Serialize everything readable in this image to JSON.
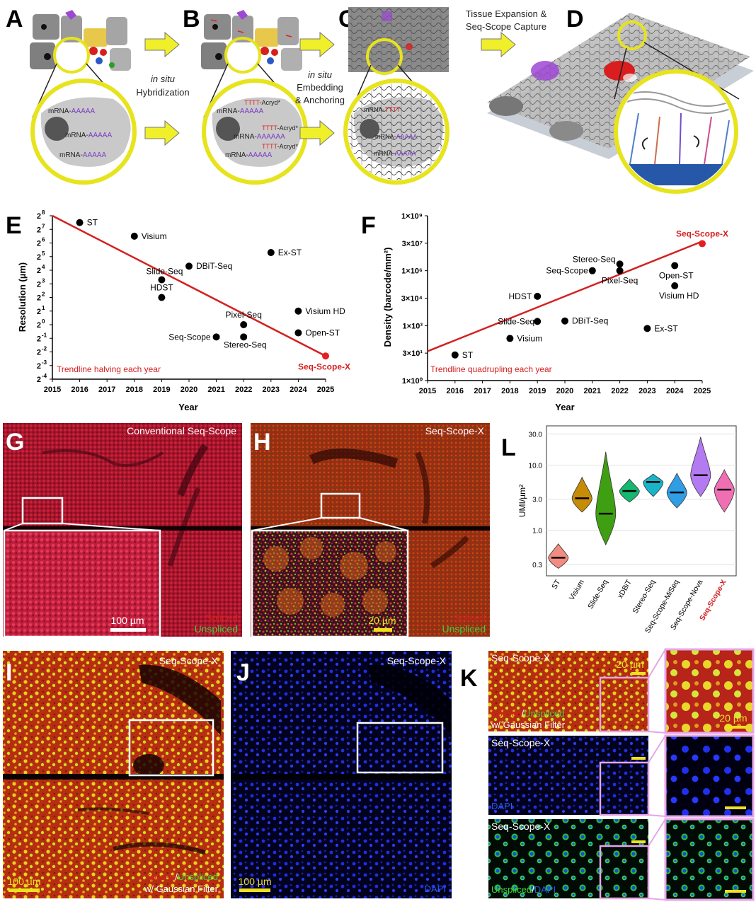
{
  "panels": {
    "A": {
      "label": "A"
    },
    "B": {
      "label": "B"
    },
    "C": {
      "label": "C"
    },
    "D": {
      "label": "D"
    },
    "E": {
      "label": "E"
    },
    "F": {
      "label": "F"
    },
    "G": {
      "label": "G",
      "title": "Conventional Seq-Scope",
      "scale": "100 µm",
      "legend_spliced": "Spliced",
      "legend_unspliced": "Unspliced"
    },
    "H": {
      "label": "H",
      "title": "Seq-Scope-X",
      "scale": "20 µm",
      "legend_spliced": "Spliced",
      "legend_unspliced": "Unspliced"
    },
    "I": {
      "label": "I",
      "title": "Seq-Scope-X",
      "scale": "100 µm",
      "legend_spliced": "Spliced",
      "legend_slash": "/",
      "legend_unspliced": "Unspliced",
      "legend_filter": "w/ Gaussian Filter"
    },
    "J": {
      "label": "J",
      "title": "Seq-Scope-X",
      "scale": "100 µm",
      "legend_dapi": "DAPI"
    },
    "K": {
      "label": "K",
      "t1": "Seq-Scope-X",
      "t2": "Seq-Scope-X",
      "t3": "Seq-Scope-X",
      "scale1": "20 µm",
      "scale2": "20 µm",
      "leg1_spliced": "Spliced",
      "leg1_slash": "/",
      "leg1_unspliced": "Unspliced",
      "leg1_filter": "w/ Gaussian Filter",
      "leg2_dapi": "DAPI",
      "leg3_unspliced": "Unspliced",
      "leg3_slash": "/",
      "leg3_dapi": "DAPI"
    },
    "L": {
      "label": "L"
    }
  },
  "schematic": {
    "step1": "in situ",
    "step1b": "Hybridization",
    "step2": "in situ",
    "step2b": "Embedding",
    "step2c": "& Anchoring",
    "step3": "Tissue Expansion &",
    "step3b": "Seq-Scope Capture",
    "mrna": "mRNA-",
    "polya": "AAAAA",
    "polya6": "AAAAAA",
    "tttt": "TTTT",
    "acryd": "-Acryd*"
  },
  "chart_data": [
    {
      "type": "scatter",
      "panel": "E",
      "xlabel": "Year",
      "ylabel": "Resolution (µm)",
      "log_base": 2,
      "xlim": [
        2015,
        2025
      ],
      "xticks": [
        "2015",
        "2016",
        "2017",
        "2018",
        "2019",
        "2020",
        "2021",
        "2022",
        "2023",
        "2024",
        "2025"
      ],
      "ytick_exponents": [
        "8",
        "7",
        "6",
        "5",
        "4",
        "3",
        "2",
        "1",
        "0",
        "-1",
        "-2",
        "-3",
        "-4"
      ],
      "ylim_exponent": [
        -4,
        8
      ],
      "points": [
        {
          "name": "ST",
          "x": 2016,
          "y_exp": 7.5
        },
        {
          "name": "Visium",
          "x": 2018,
          "y_exp": 6.5
        },
        {
          "name": "DBiT-Seq",
          "x": 2020,
          "y_exp": 4.3
        },
        {
          "name": "Ex-ST",
          "x": 2023,
          "y_exp": 5.3
        },
        {
          "name": "Slide-Seq",
          "x": 2019,
          "y_exp": 3.3
        },
        {
          "name": "HDST",
          "x": 2019,
          "y_exp": 2.0
        },
        {
          "name": "Visium HD",
          "x": 2024,
          "y_exp": 1.0
        },
        {
          "name": "Pixel-Seq",
          "x": 2022,
          "y_exp": 0.0
        },
        {
          "name": "Seq-Scope",
          "x": 2021,
          "y_exp": -0.9
        },
        {
          "name": "Stereo-Seq",
          "x": 2022,
          "y_exp": -0.9
        },
        {
          "name": "Open-ST",
          "x": 2024,
          "y_exp": -0.6
        },
        {
          "name": "Seq-Scope-X",
          "x": 2025,
          "y_exp": -2.3,
          "highlight": true
        }
      ],
      "trend": {
        "label": "Trendline halving each year",
        "start": [
          2015,
          8
        ],
        "end": [
          2025,
          -2.3
        ]
      }
    },
    {
      "type": "scatter",
      "panel": "F",
      "xlabel": "Year",
      "ylabel": "Density (barcode/mm²)",
      "xlim": [
        2015,
        2025
      ],
      "xticks": [
        "2015",
        "2016",
        "2017",
        "2018",
        "2019",
        "2020",
        "2021",
        "2022",
        "2023",
        "2024",
        "2025"
      ],
      "yticks": [
        "1×10⁹",
        "3×10⁷",
        "1×10⁶",
        "3×10⁴",
        "1×10³",
        "3×10¹",
        "1×10⁰"
      ],
      "ylim_log10": [
        0,
        9
      ],
      "points": [
        {
          "name": "ST",
          "x": 2016,
          "y": 25
        },
        {
          "name": "Visium",
          "x": 2018,
          "y": 200
        },
        {
          "name": "Slide-Seq",
          "x": 2019,
          "y": 1700
        },
        {
          "name": "DBiT-Seq",
          "x": 2020,
          "y": 1800
        },
        {
          "name": "HDST",
          "x": 2019,
          "y": 40000
        },
        {
          "name": "Seq-Scope",
          "x": 2021,
          "y": 1000000
        },
        {
          "name": "Stereo-Seq",
          "x": 2022,
          "y": 2300000
        },
        {
          "name": "Pixel-Seq",
          "x": 2022,
          "y": 1000000
        },
        {
          "name": "Open-ST",
          "x": 2024,
          "y": 1900000
        },
        {
          "name": "Visium HD",
          "x": 2024,
          "y": 150000
        },
        {
          "name": "Ex-ST",
          "x": 2023,
          "y": 700
        },
        {
          "name": "Seq-Scope-X",
          "x": 2025,
          "y": 30000000,
          "highlight": true
        }
      ],
      "trend": {
        "label": "Trendline quadrupling each year",
        "start": [
          2015,
          1.6
        ],
        "end": [
          2025,
          7.6
        ]
      }
    },
    {
      "type": "violin",
      "panel": "L",
      "ylabel": "UMI/µm²",
      "yticks": [
        "30.0",
        "10.0",
        "3.0",
        "1.0",
        "0.3"
      ],
      "categories": [
        "ST",
        "Visium",
        "Slide-Seq",
        "xDBiT",
        "Stereo-Seq",
        "Seq-Scope-MiSeq",
        "Seq-Scope-Nova",
        "Seq-Scope-X"
      ],
      "medians": [
        0.38,
        3.1,
        1.8,
        4.0,
        5.5,
        3.8,
        7.0,
        4.2
      ],
      "ranges": [
        [
          0.26,
          0.62
        ],
        [
          1.9,
          6.5
        ],
        [
          0.6,
          16
        ],
        [
          2.7,
          6.1
        ],
        [
          3.3,
          7.3
        ],
        [
          2.2,
          7.5
        ],
        [
          3.3,
          27
        ],
        [
          1.9,
          8.5
        ]
      ],
      "colors": [
        "#f28b82",
        "#c78c06",
        "#3f9f13",
        "#14b871",
        "#19b4c9",
        "#2f9ee5",
        "#b47af2",
        "#f06fb4"
      ],
      "highlight": "Seq-Scope-X"
    }
  ]
}
